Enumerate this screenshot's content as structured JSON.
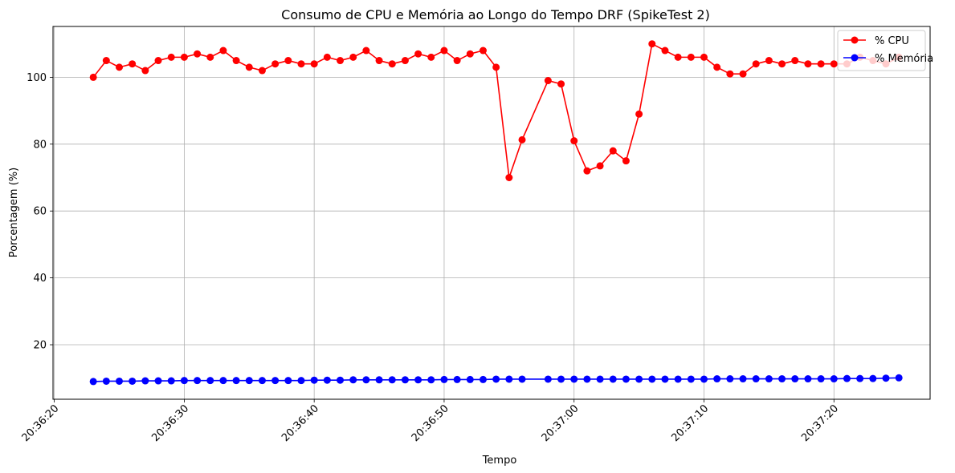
{
  "chart_data": {
    "type": "line",
    "title": "Consumo de CPU e Memória ao Longo do Tempo DRF (SpikeTest 2)",
    "xlabel": "Tempo",
    "ylabel": "Porcentagem (%)",
    "x_ticks": [
      "20:36:20",
      "20:36:30",
      "20:36:40",
      "20:36:50",
      "20:37:00",
      "20:37:10",
      "20:37:20"
    ],
    "y_ticks": [
      20,
      40,
      60,
      80,
      100
    ],
    "xlim": [
      "20:36:19.9",
      "20:37:27.4"
    ],
    "ylim": [
      3.7,
      115.2
    ],
    "grid": true,
    "legend_position": "top-right",
    "series": [
      {
        "name": "% CPU",
        "color": "#ff0000",
        "points": [
          [
            "20:36:23",
            100
          ],
          [
            "20:36:24",
            105
          ],
          [
            "20:36:25",
            103
          ],
          [
            "20:36:26",
            104
          ],
          [
            "20:36:27",
            102
          ],
          [
            "20:36:28",
            105
          ],
          [
            "20:36:29",
            106
          ],
          [
            "20:36:30",
            106
          ],
          [
            "20:36:31",
            107
          ],
          [
            "20:36:32",
            106
          ],
          [
            "20:36:33",
            108
          ],
          [
            "20:36:34",
            105
          ],
          [
            "20:36:35",
            103
          ],
          [
            "20:36:36",
            102
          ],
          [
            "20:36:37",
            104
          ],
          [
            "20:36:38",
            105
          ],
          [
            "20:36:39",
            104
          ],
          [
            "20:36:40",
            104
          ],
          [
            "20:36:41",
            106
          ],
          [
            "20:36:42",
            105
          ],
          [
            "20:36:43",
            106
          ],
          [
            "20:36:44",
            108
          ],
          [
            "20:36:45",
            105
          ],
          [
            "20:36:46",
            104
          ],
          [
            "20:36:47",
            105
          ],
          [
            "20:36:48",
            107
          ],
          [
            "20:36:49",
            106
          ],
          [
            "20:36:50",
            108
          ],
          [
            "20:36:51",
            105
          ],
          [
            "20:36:52",
            107
          ],
          [
            "20:36:53",
            108
          ],
          [
            "20:36:54",
            103
          ],
          [
            "20:36:55",
            70
          ],
          [
            "20:36:56",
            81.3
          ],
          [
            "20:36:58",
            99
          ],
          [
            "20:36:59",
            98
          ],
          [
            "20:37:00",
            81
          ],
          [
            "20:37:01",
            72
          ],
          [
            "20:37:02",
            73.5
          ],
          [
            "20:37:03",
            78
          ],
          [
            "20:37:04",
            75
          ],
          [
            "20:37:05",
            89
          ],
          [
            "20:37:06",
            110
          ],
          [
            "20:37:07",
            108
          ],
          [
            "20:37:08",
            106
          ],
          [
            "20:37:09",
            106
          ],
          [
            "20:37:10",
            106
          ],
          [
            "20:37:11",
            103
          ],
          [
            "20:37:12",
            101
          ],
          [
            "20:37:13",
            101
          ],
          [
            "20:37:14",
            104
          ],
          [
            "20:37:15",
            105
          ],
          [
            "20:37:16",
            104
          ],
          [
            "20:37:17",
            105
          ],
          [
            "20:37:18",
            104
          ],
          [
            "20:37:19",
            104
          ],
          [
            "20:37:20",
            104
          ],
          [
            "20:37:21",
            104
          ],
          [
            "20:37:22",
            106
          ],
          [
            "20:37:23",
            105
          ],
          [
            "20:37:24",
            104
          ],
          [
            "20:37:25",
            106
          ]
        ]
      },
      {
        "name": "% Memória",
        "color": "#0000ff",
        "points": [
          [
            "20:36:23",
            9.0
          ],
          [
            "20:36:24",
            9.1
          ],
          [
            "20:36:25",
            9.1
          ],
          [
            "20:36:26",
            9.1
          ],
          [
            "20:36:27",
            9.2
          ],
          [
            "20:36:28",
            9.2
          ],
          [
            "20:36:29",
            9.2
          ],
          [
            "20:36:30",
            9.3
          ],
          [
            "20:36:31",
            9.3
          ],
          [
            "20:36:32",
            9.3
          ],
          [
            "20:36:33",
            9.3
          ],
          [
            "20:36:34",
            9.3
          ],
          [
            "20:36:35",
            9.3
          ],
          [
            "20:36:36",
            9.3
          ],
          [
            "20:36:37",
            9.3
          ],
          [
            "20:36:38",
            9.3
          ],
          [
            "20:36:39",
            9.3
          ],
          [
            "20:36:40",
            9.4
          ],
          [
            "20:36:41",
            9.4
          ],
          [
            "20:36:42",
            9.4
          ],
          [
            "20:36:43",
            9.5
          ],
          [
            "20:36:44",
            9.5
          ],
          [
            "20:36:45",
            9.5
          ],
          [
            "20:36:46",
            9.5
          ],
          [
            "20:36:47",
            9.5
          ],
          [
            "20:36:48",
            9.5
          ],
          [
            "20:36:49",
            9.5
          ],
          [
            "20:36:50",
            9.6
          ],
          [
            "20:36:51",
            9.6
          ],
          [
            "20:36:52",
            9.6
          ],
          [
            "20:36:53",
            9.6
          ],
          [
            "20:36:54",
            9.7
          ],
          [
            "20:36:55",
            9.7
          ],
          [
            "20:36:56",
            9.7
          ],
          [
            "20:36:58",
            9.7
          ],
          [
            "20:36:59",
            9.7
          ],
          [
            "20:37:00",
            9.7
          ],
          [
            "20:37:01",
            9.7
          ],
          [
            "20:37:02",
            9.7
          ],
          [
            "20:37:03",
            9.7
          ],
          [
            "20:37:04",
            9.7
          ],
          [
            "20:37:05",
            9.7
          ],
          [
            "20:37:06",
            9.7
          ],
          [
            "20:37:07",
            9.7
          ],
          [
            "20:37:08",
            9.7
          ],
          [
            "20:37:09",
            9.7
          ],
          [
            "20:37:10",
            9.7
          ],
          [
            "20:37:11",
            9.8
          ],
          [
            "20:37:12",
            9.8
          ],
          [
            "20:37:13",
            9.8
          ],
          [
            "20:37:14",
            9.8
          ],
          [
            "20:37:15",
            9.8
          ],
          [
            "20:37:16",
            9.8
          ],
          [
            "20:37:17",
            9.8
          ],
          [
            "20:37:18",
            9.8
          ],
          [
            "20:37:19",
            9.8
          ],
          [
            "20:37:20",
            9.8
          ],
          [
            "20:37:21",
            9.9
          ],
          [
            "20:37:22",
            9.9
          ],
          [
            "20:37:23",
            9.9
          ],
          [
            "20:37:24",
            10.0
          ],
          [
            "20:37:25",
            10.1
          ]
        ]
      }
    ]
  }
}
